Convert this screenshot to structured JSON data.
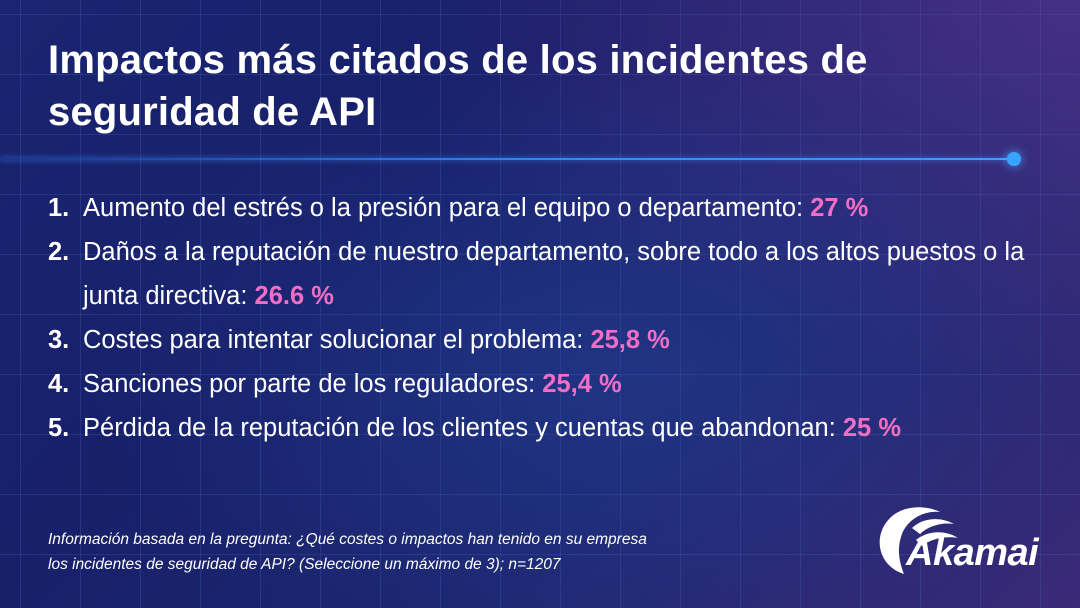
{
  "title": {
    "line1": "Impactos más citados de los incidentes de",
    "line2": "seguridad de API"
  },
  "items": [
    {
      "num": "1.",
      "text": "Aumento del estrés o la presión para el equipo o departamento: ",
      "pct": "27 %"
    },
    {
      "num": "2.",
      "text": "Daños a la reputación de nuestro departamento, sobre todo a los altos puestos o la junta directiva: ",
      "pct": "26.6 %"
    },
    {
      "num": "3.",
      "text": "Costes para intentar solucionar el problema: ",
      "pct": "25,8 %"
    },
    {
      "num": "4.",
      "text": "Sanciones por parte de los reguladores: ",
      "pct": "25,4 %"
    },
    {
      "num": "5.",
      "text": "Pérdida de la reputación de los clientes y cuentas que abandonan: ",
      "pct": "25 %"
    }
  ],
  "footnote": {
    "line1": "Información basada en la pregunta: ¿Qué costes o impactos han tenido en su empresa",
    "line2": "los incidentes de seguridad de API? (Seleccione un máximo de 3); n=1207"
  },
  "logo": {
    "text": "Akamai"
  },
  "colors": {
    "background": "#1b2370",
    "accent_pink": "#f06ec4",
    "accent_blue": "#2a8cff"
  }
}
